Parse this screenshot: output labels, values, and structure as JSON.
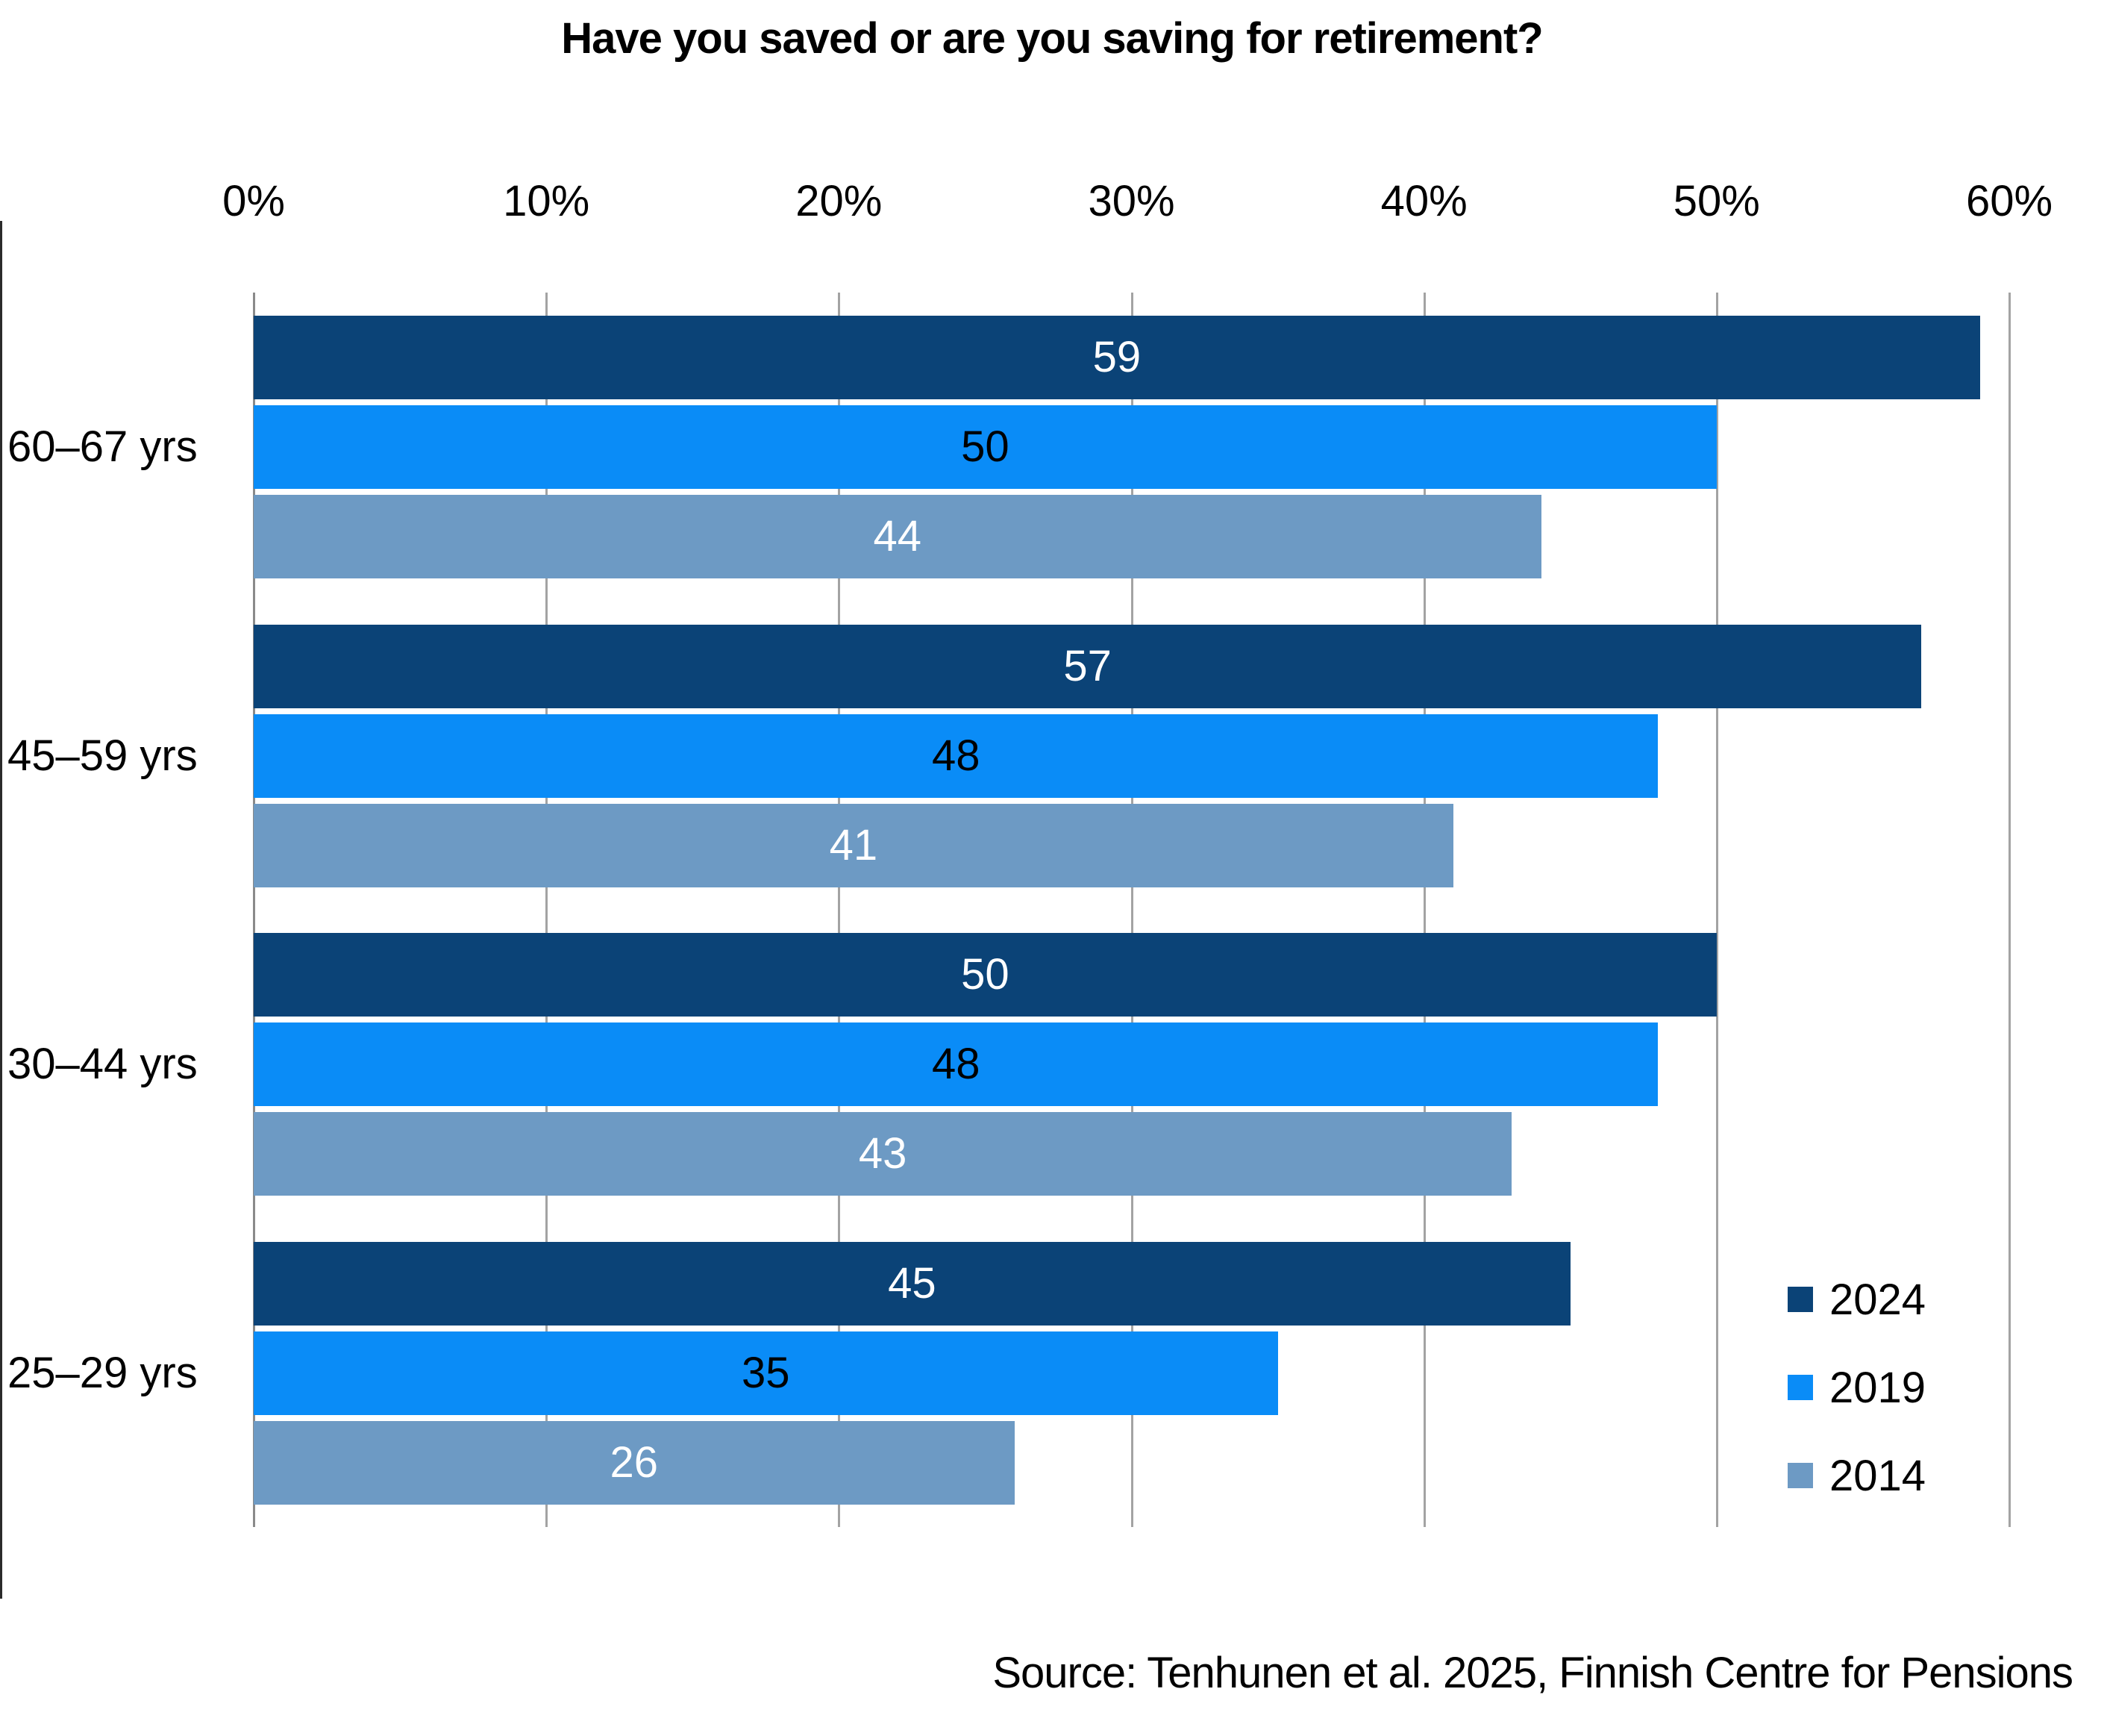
{
  "chart_data": {
    "type": "bar",
    "orientation": "horizontal",
    "title": "Have you saved or are you saving for retirement?",
    "categories": [
      "60–67 yrs",
      "45–59 yrs",
      "30–44 yrs",
      "25–29 yrs"
    ],
    "series": [
      {
        "name": "2024",
        "color": "#0b4377",
        "label_color": "#ffffff",
        "values": [
          59,
          57,
          50,
          45
        ]
      },
      {
        "name": "2019",
        "color": "#0a8cf7",
        "label_color": "#000000",
        "values": [
          50,
          48,
          48,
          35
        ]
      },
      {
        "name": "2014",
        "color": "#6d9ac4",
        "label_color": "#ffffff",
        "values": [
          44,
          41,
          43,
          26
        ]
      }
    ],
    "x_axis": {
      "tick_labels": [
        "0%",
        "10%",
        "20%",
        "30%",
        "40%",
        "50%",
        "60%"
      ],
      "tick_values": [
        0,
        10,
        20,
        30,
        40,
        50,
        60
      ],
      "min": 0,
      "max": 60,
      "grid": true,
      "grid_color": "#a3a3a3"
    },
    "legend": {
      "position": "bottom-right-inside",
      "entries": [
        "2024",
        "2019",
        "2014"
      ]
    },
    "data_labels": "inside-center",
    "source": "Source: Tenhunen et al. 2025, Finnish Centre for Pensions"
  }
}
